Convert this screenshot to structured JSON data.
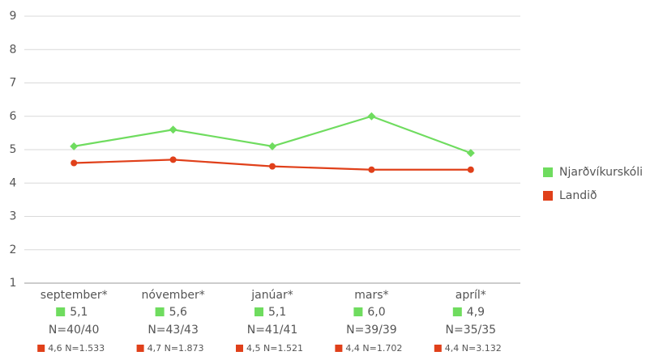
{
  "chart_data": {
    "type": "line",
    "categories": [
      "september*",
      "nóvember*",
      "janúar*",
      "mars*",
      "apríl*"
    ],
    "series": [
      {
        "name": "Njarðvíkurskóli",
        "color": "#6fdc5f",
        "values": [
          5.1,
          5.6,
          5.1,
          6.0,
          4.9
        ],
        "value_labels": [
          "5,1",
          "5,6",
          "5,1",
          "6,0",
          "4,9"
        ],
        "n_labels": [
          "N=40/40",
          "N=43/43",
          "N=41/41",
          "N=39/39",
          "N=35/35"
        ]
      },
      {
        "name": "Landið",
        "color": "#e0401a",
        "values": [
          4.6,
          4.7,
          4.5,
          4.4,
          4.4
        ],
        "value_labels": [
          "4,6",
          "4,7",
          "4,5",
          "4,4",
          "4,4"
        ],
        "n_labels": [
          "N=1.533",
          "N=1.873",
          "N=1.521",
          "N=1.702",
          "N=3.132"
        ]
      }
    ],
    "ylim": [
      1,
      9
    ],
    "yticks": [
      1,
      2,
      3,
      4,
      5,
      6,
      7,
      8,
      9
    ],
    "grid": true,
    "legend": "right"
  }
}
